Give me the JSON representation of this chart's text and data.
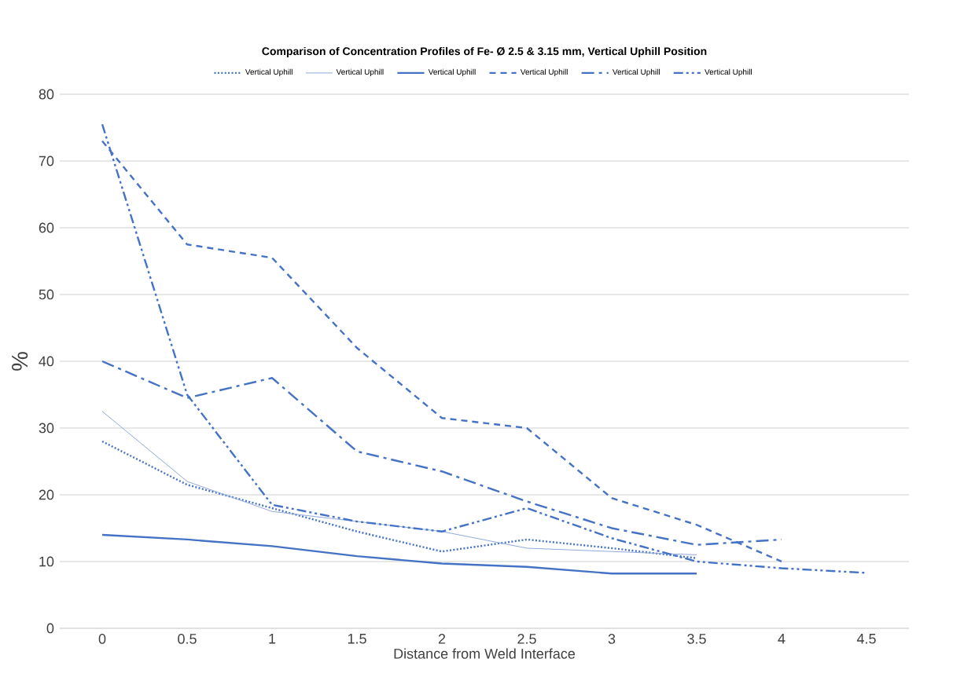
{
  "chart_data": {
    "type": "line",
    "title": "Comparison of Concentration Profiles of Fe- Ø 2.5 & 3.15 mm, Vertical Uphill Position",
    "xlabel": "Distance from Weld Interface",
    "ylabel": "%",
    "categories": [
      "0",
      "0.5",
      "1",
      "1.5",
      "2",
      "2.5",
      "3",
      "3.5",
      "4",
      "4.5"
    ],
    "ylim": [
      0,
      80
    ],
    "yticks": [
      0,
      10,
      20,
      30,
      40,
      50,
      60,
      70,
      80
    ],
    "grid": "y",
    "legend": "top",
    "marker": "none",
    "series": [
      {
        "name": "Vertical Uphill",
        "color": "#4472c4",
        "line_style": "dotted",
        "values": [
          28,
          21.5,
          18,
          14.5,
          11.5,
          13.3,
          12,
          10.5,
          null,
          null
        ]
      },
      {
        "name": "Vertical Uphill",
        "color": "#8faadc",
        "line_style": "solid",
        "values": [
          32.5,
          22,
          17.5,
          16,
          14.5,
          12,
          11.5,
          11,
          null,
          null
        ]
      },
      {
        "name": "Vertical Uphill",
        "color": "#4472c4",
        "line_style": "solid",
        "values": [
          14,
          13.3,
          12.3,
          10.8,
          9.7,
          9.2,
          8.2,
          8.2,
          null,
          null
        ]
      },
      {
        "name": "Vertical Uphill",
        "color": "#4472c4",
        "line_style": "dashed",
        "values": [
          73,
          57.5,
          55.5,
          42,
          31.5,
          30,
          19.5,
          15.5,
          10,
          null
        ]
      },
      {
        "name": "Vertical Uphill",
        "color": "#4472c4",
        "line_style": "dashdot",
        "values": [
          40,
          34.5,
          37.5,
          26.5,
          23.5,
          19,
          15,
          12.5,
          13.3,
          null
        ]
      },
      {
        "name": "Vertical Uphill",
        "color": "#4472c4",
        "line_style": "dashdotdot",
        "values": [
          75.5,
          35,
          18.5,
          16,
          14.5,
          18,
          13.5,
          10,
          9,
          8.3
        ]
      }
    ]
  }
}
